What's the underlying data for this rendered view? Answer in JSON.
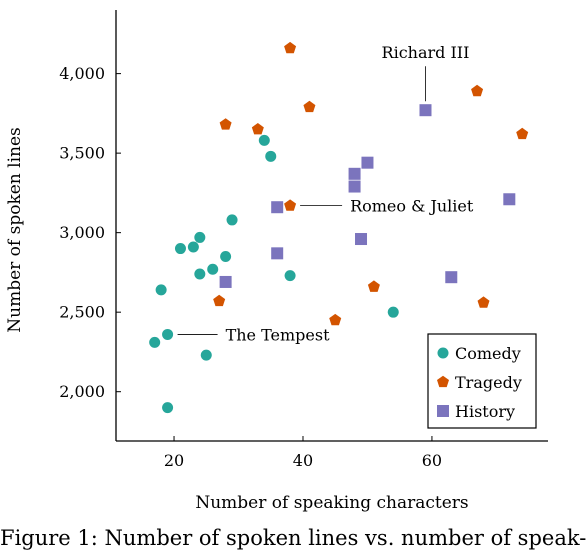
{
  "chart_data": {
    "type": "scatter",
    "title": "",
    "xlabel": "Number of speaking characters",
    "ylabel": "Number of spoken lines",
    "xlim": [
      11,
      78
    ],
    "ylim": [
      1690,
      4400
    ],
    "xticks": [
      20,
      40,
      60
    ],
    "xtick_labels": [
      "20",
      "40",
      "60"
    ],
    "yticks": [
      2000,
      2500,
      3000,
      3500,
      4000
    ],
    "ytick_labels": [
      "2,000",
      "2,500",
      "3,000",
      "3,500",
      "4,000"
    ],
    "grid": false,
    "legend_position": "bottom-right",
    "series": [
      {
        "name": "Comedy",
        "marker": "circle",
        "color": "#26a69a",
        "points": [
          [
            19,
            1900
          ],
          [
            25,
            2230
          ],
          [
            17,
            2310
          ],
          [
            19,
            2360
          ],
          [
            18,
            2640
          ],
          [
            21,
            2900
          ],
          [
            23,
            2910
          ],
          [
            24,
            2970
          ],
          [
            24,
            2740
          ],
          [
            26,
            2770
          ],
          [
            28,
            2850
          ],
          [
            29,
            3080
          ],
          [
            34,
            3580
          ],
          [
            35,
            3480
          ],
          [
            38,
            2730
          ],
          [
            54,
            2500
          ]
        ]
      },
      {
        "name": "Tragedy",
        "marker": "pentagon",
        "color": "#d35400",
        "points": [
          [
            38,
            4160
          ],
          [
            28,
            3680
          ],
          [
            33,
            3650
          ],
          [
            41,
            3790
          ],
          [
            38,
            3170
          ],
          [
            27,
            2570
          ],
          [
            45,
            2450
          ],
          [
            51,
            2660
          ],
          [
            67,
            3890
          ],
          [
            74,
            3620
          ],
          [
            68,
            2560
          ]
        ]
      },
      {
        "name": "History",
        "marker": "square",
        "color": "#7b74bd",
        "points": [
          [
            59,
            3770
          ],
          [
            48,
            3370
          ],
          [
            50,
            3440
          ],
          [
            48,
            3290
          ],
          [
            36,
            3160
          ],
          [
            49,
            2960
          ],
          [
            36,
            2870
          ],
          [
            28,
            2690
          ],
          [
            63,
            2720
          ],
          [
            72,
            3210
          ]
        ]
      }
    ],
    "annotations": [
      {
        "text": "Richard III",
        "x": 59,
        "y": 3770
      },
      {
        "text": "Romeo & Juliet",
        "x": 38,
        "y": 3170
      },
      {
        "text": "The Tempest",
        "x": 19,
        "y": 2360
      }
    ]
  },
  "caption": "Figure 1: Number of spoken lines vs. number of speak-"
}
